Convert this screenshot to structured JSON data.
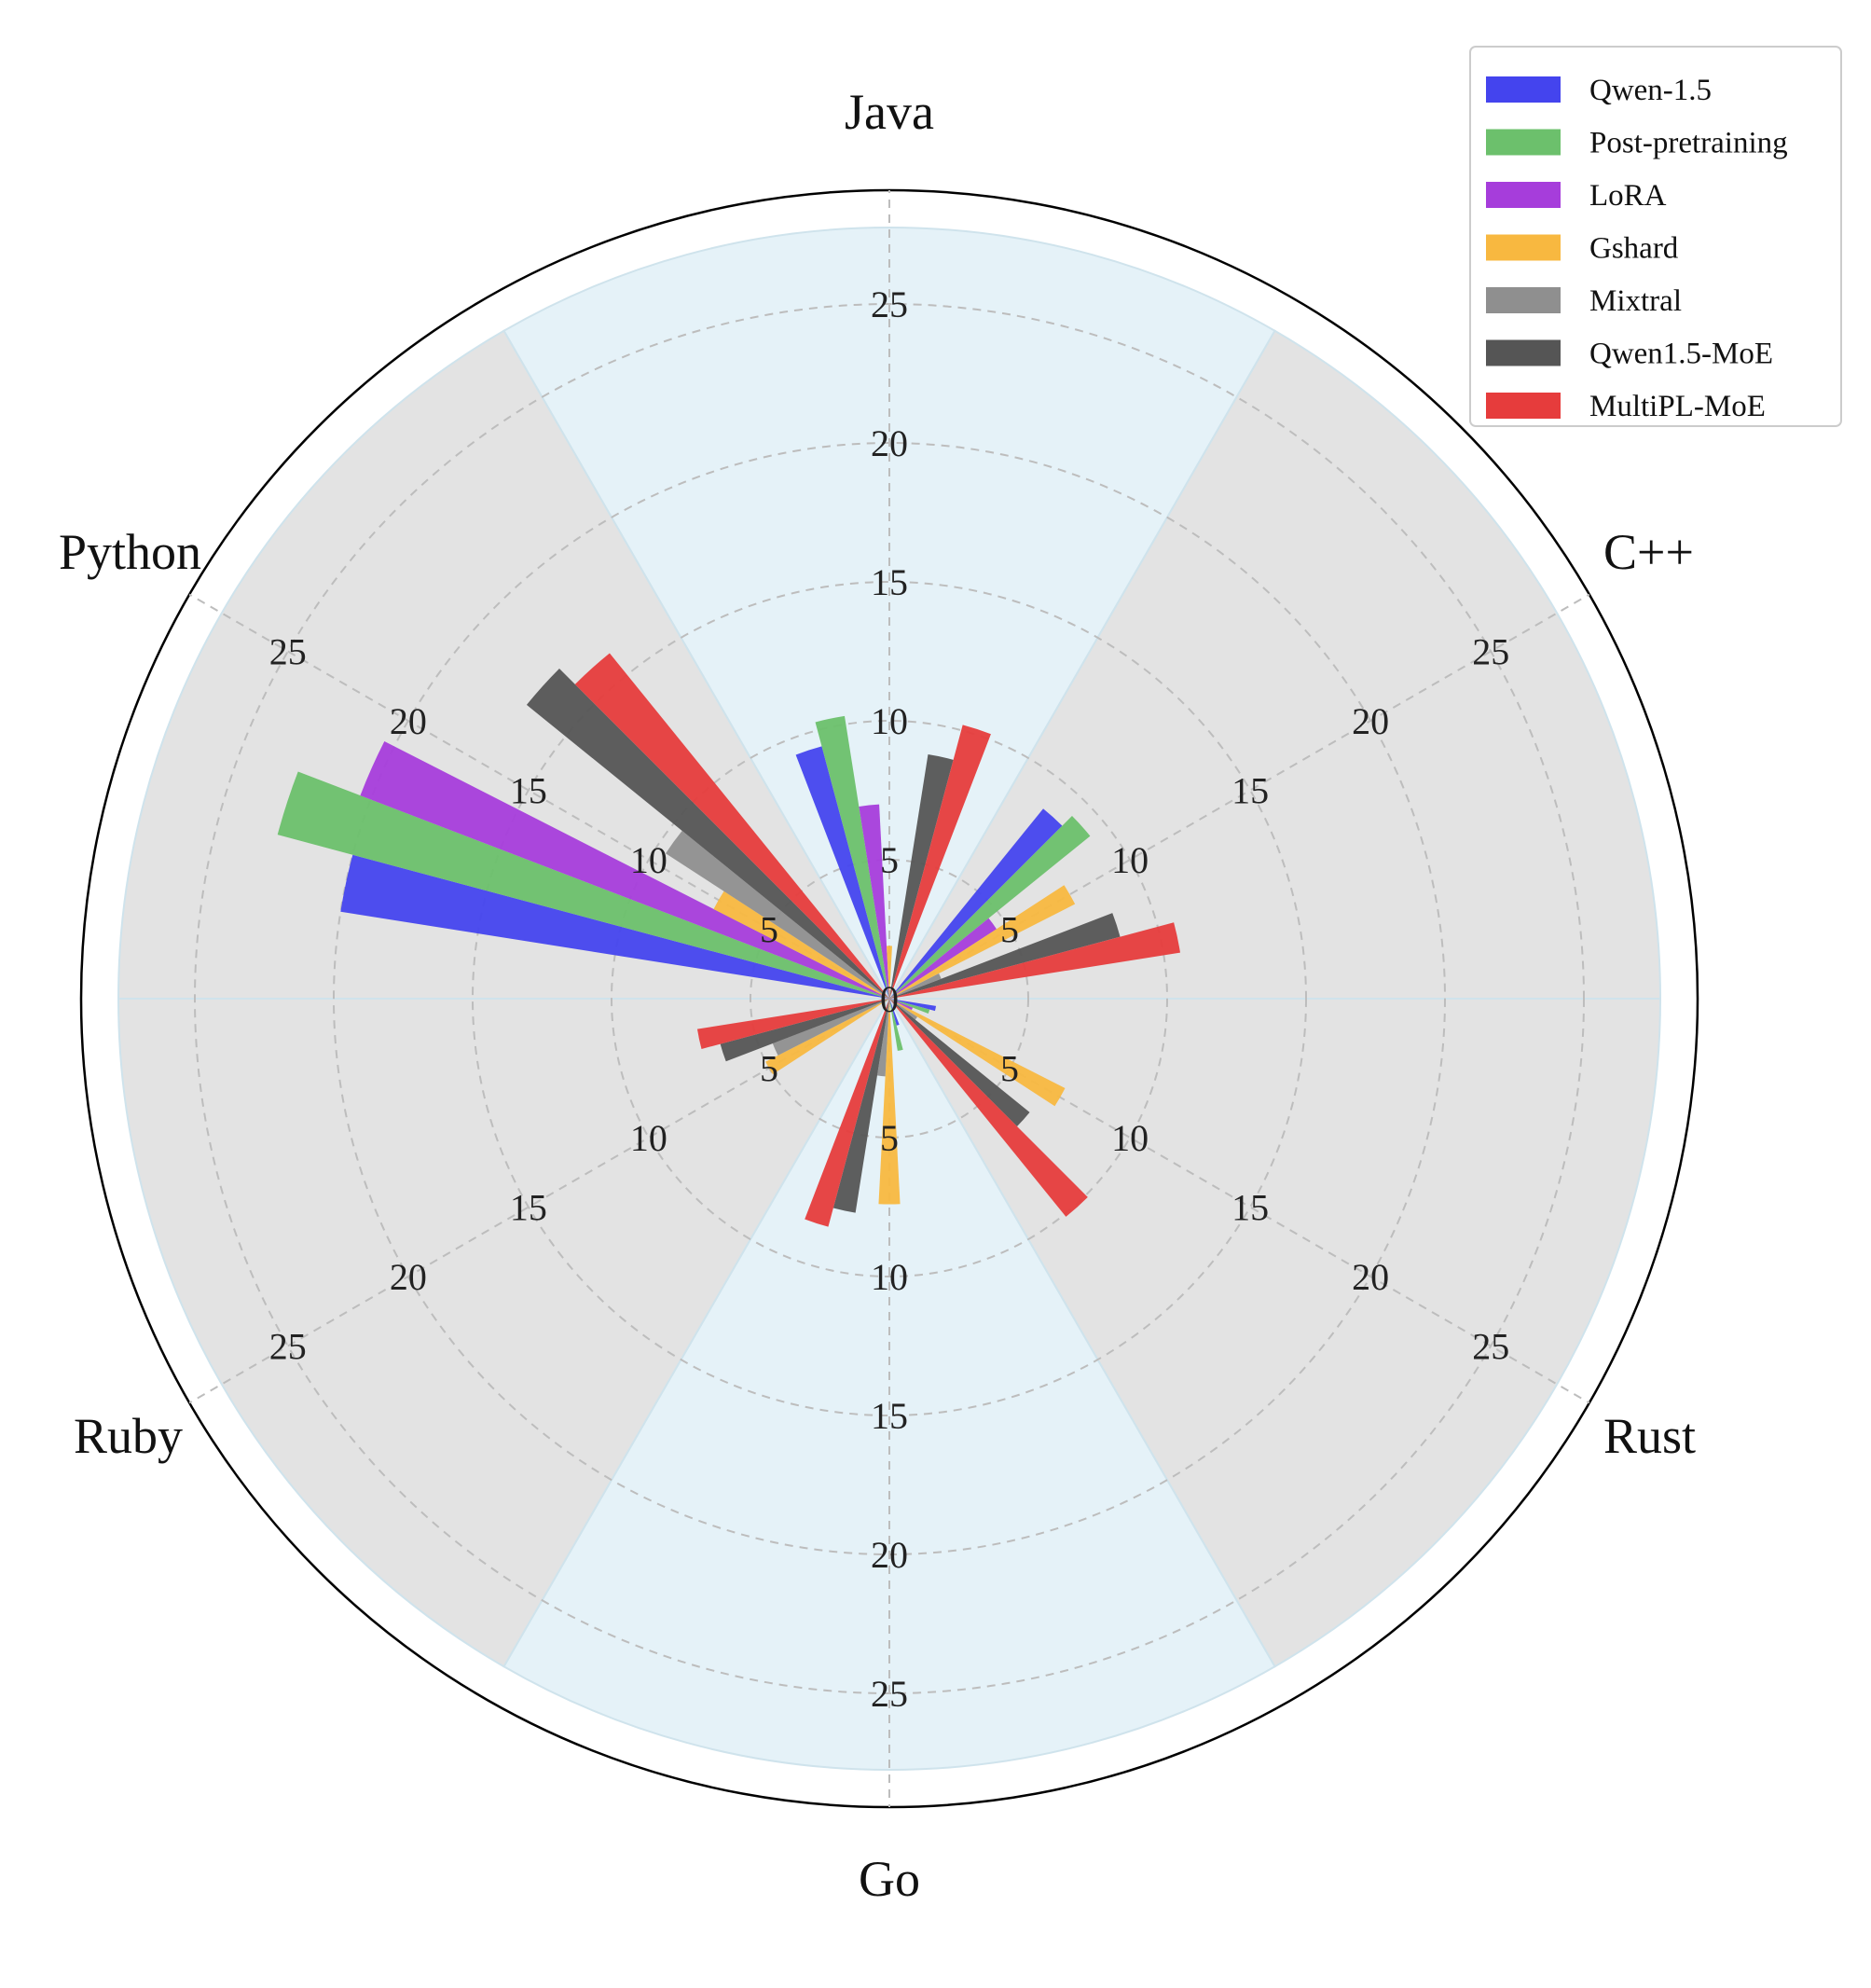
{
  "chart_data": {
    "type": "polar-bar",
    "categories": [
      "Java",
      "C++",
      "Rust",
      "Go",
      "Ruby",
      "Python"
    ],
    "rlim": [
      0,
      27
    ],
    "rticks": [
      "0",
      "5",
      "10",
      "15",
      "20",
      "25"
    ],
    "grid": true,
    "legend_position": "top-right",
    "series": [
      {
        "name": "Qwen-1.5",
        "color": "#4444ee",
        "values": [
          9.4,
          8.8,
          1.7,
          1.0,
          0.0,
          20.0
        ]
      },
      {
        "name": "Post-pretraining",
        "color": "#6cc06c",
        "values": [
          10.3,
          9.3,
          1.5,
          1.9,
          0.0,
          22.8
        ]
      },
      {
        "name": "LoRA",
        "color": "#a63ddb",
        "values": [
          7.0,
          4.6,
          0.9,
          0.2,
          0.0,
          20.4
        ]
      },
      {
        "name": "Gshard",
        "color": "#f8b840",
        "values": [
          1.9,
          7.5,
          7.1,
          7.4,
          5.0,
          7.1
        ]
      },
      {
        "name": "Mixtral",
        "color": "#8f8f8f",
        "values": [
          0.0,
          2.0,
          1.2,
          2.8,
          4.5,
          9.6
        ]
      },
      {
        "name": "Qwen1.5-MoE",
        "color": "#555555",
        "values": [
          8.9,
          8.6,
          6.5,
          7.8,
          6.3,
          16.8
        ]
      },
      {
        "name": "MultiPL-MoE",
        "color": "#e63c3c",
        "values": [
          10.2,
          10.6,
          10.1,
          8.5,
          7.0,
          16.0
        ]
      }
    ]
  }
}
